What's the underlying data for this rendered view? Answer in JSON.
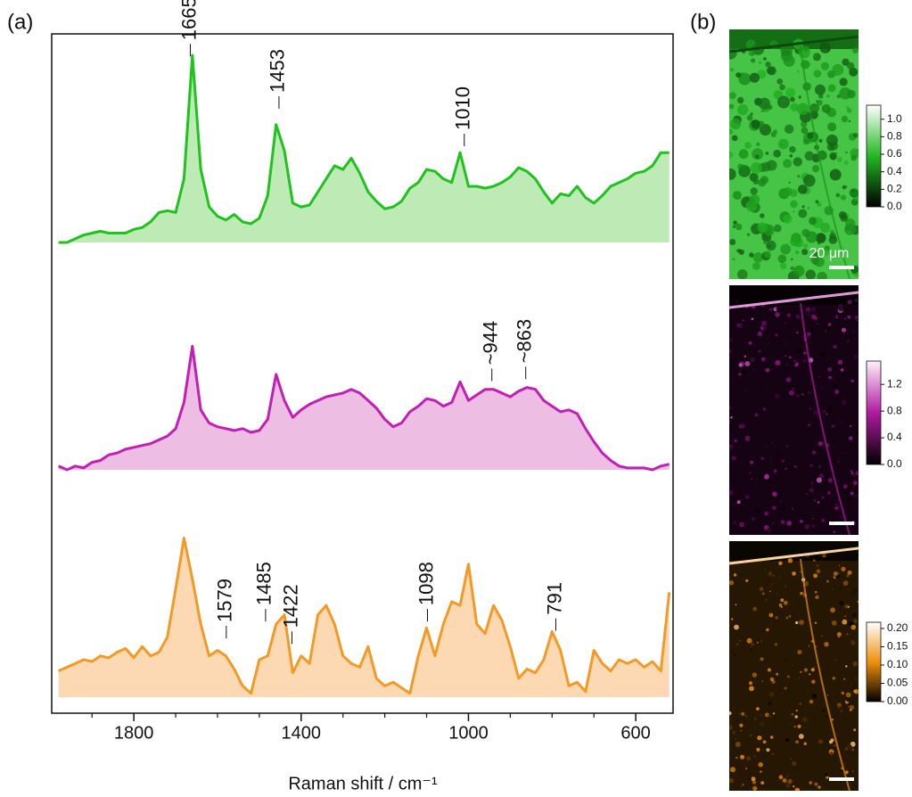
{
  "chart_data": [
    {
      "type": "line",
      "panel_label": "(a)",
      "xlabel": "Raman shift / cm⁻¹",
      "xlim": [
        1990,
        515
      ],
      "xticks": [
        1800,
        1400,
        1000,
        600
      ],
      "xminorticks": [
        1900,
        1700,
        1600,
        1500,
        1300,
        1200,
        1100,
        900,
        800,
        700,
        500
      ],
      "x": [
        1980,
        1960,
        1940,
        1920,
        1900,
        1880,
        1860,
        1840,
        1820,
        1800,
        1780,
        1760,
        1740,
        1720,
        1700,
        1680,
        1660,
        1640,
        1620,
        1600,
        1580,
        1560,
        1540,
        1520,
        1500,
        1480,
        1460,
        1440,
        1420,
        1400,
        1380,
        1360,
        1340,
        1320,
        1300,
        1280,
        1260,
        1240,
        1220,
        1200,
        1180,
        1160,
        1140,
        1120,
        1100,
        1080,
        1060,
        1040,
        1020,
        1000,
        980,
        960,
        940,
        920,
        900,
        880,
        860,
        840,
        820,
        800,
        780,
        760,
        740,
        720,
        700,
        680,
        660,
        640,
        620,
        600,
        580,
        560,
        540,
        520
      ],
      "series": [
        {
          "color": "#1ec31e",
          "fill": "#bdeab5",
          "ylim": [
            0,
            100
          ],
          "values": [
            0,
            0,
            2,
            4,
            5,
            6,
            5,
            5,
            5,
            7,
            8,
            11,
            16,
            17,
            16,
            34,
            100,
            39,
            19,
            14,
            12,
            15,
            11,
            10,
            13,
            25,
            63,
            49,
            21,
            19,
            20,
            27,
            34,
            41,
            39,
            45,
            37,
            27,
            22,
            18,
            19,
            22,
            29,
            32,
            39,
            38,
            34,
            32,
            48,
            30,
            30,
            29,
            30,
            32,
            35,
            40,
            38,
            34,
            27,
            21,
            26,
            25,
            30,
            24,
            21,
            25,
            30,
            32,
            34,
            37,
            38,
            41,
            48,
            48
          ],
          "annotations": [
            {
              "text": "1665",
              "x": 1665,
              "y": 98
            },
            {
              "text": "1453",
              "x": 1453,
              "y": 70
            },
            {
              "text": "1010",
              "x": 1010,
              "y": 50
            }
          ]
        },
        {
          "color": "#c21fb4",
          "fill": "#eebde3",
          "ylim": [
            0,
            100
          ],
          "values": [
            2,
            0,
            2,
            1,
            4,
            5,
            8,
            9,
            11,
            12,
            13,
            14,
            16,
            18,
            22,
            36,
            66,
            32,
            25,
            23,
            22,
            21,
            22,
            20,
            21,
            27,
            51,
            37,
            28,
            32,
            35,
            37,
            39,
            40,
            41,
            43,
            41,
            37,
            33,
            27,
            23,
            25,
            31,
            34,
            38,
            37,
            34,
            36,
            47,
            37,
            40,
            43,
            43,
            41,
            39,
            42,
            44,
            43,
            37,
            34,
            31,
            32,
            30,
            22,
            15,
            9,
            5,
            2,
            1,
            1,
            1,
            0,
            2,
            3
          ],
          "annotations": [
            {
              "text": "~944",
              "x": 944,
              "y": 46
            },
            {
              "text": "~863",
              "x": 863,
              "y": 47
            }
          ]
        },
        {
          "color": "#f39a26",
          "fill": "#fdd9b3",
          "ylim": [
            0,
            100
          ],
          "values": [
            14,
            16,
            18,
            20,
            19,
            22,
            21,
            24,
            26,
            21,
            27,
            22,
            24,
            32,
            58,
            85,
            63,
            39,
            22,
            25,
            22,
            15,
            6,
            2,
            20,
            22,
            39,
            44,
            13,
            22,
            18,
            44,
            49,
            39,
            22,
            18,
            16,
            27,
            10,
            6,
            8,
            5,
            2,
            22,
            37,
            22,
            39,
            51,
            49,
            71,
            39,
            34,
            49,
            41,
            27,
            10,
            15,
            13,
            20,
            35,
            25,
            6,
            8,
            3,
            25,
            18,
            14,
            20,
            18,
            20,
            16,
            19,
            14,
            56
          ],
          "annotations": [
            {
              "text": "1579",
              "x": 1579,
              "y": 30
            },
            {
              "text": "1485",
              "x": 1485,
              "y": 39
            },
            {
              "text": "1422",
              "x": 1422,
              "y": 27
            },
            {
              "text": "1098",
              "x": 1098,
              "y": 39
            },
            {
              "text": "791",
              "x": 791,
              "y": 34
            }
          ]
        }
      ]
    },
    {
      "type": "map",
      "panel_label": "(b)",
      "scale_label": "20 μm",
      "colors": [
        "#000000",
        "#22b922",
        "#ffffff"
      ],
      "clim": [
        0,
        1.16
      ],
      "cticks": [
        {
          "value": 0,
          "label": "0.0"
        },
        0.2,
        0.4,
        0.6,
        0.8,
        {
          "value": 1,
          "label": "1.0"
        }
      ]
    },
    {
      "type": "map",
      "colors": [
        "#000000",
        "#b01aa0",
        "#fff0fb"
      ],
      "clim": [
        0,
        1.55
      ],
      "cticks": [
        {
          "value": 0,
          "label": "0.0"
        },
        0.4,
        0.8,
        1.2
      ]
    },
    {
      "type": "map",
      "colors": [
        "#000000",
        "#f0900c",
        "#ffffff"
      ],
      "clim": [
        0,
        0.217
      ],
      "cticks": [
        {
          "value": 0,
          "label": "0.00"
        },
        0.05,
        {
          "value": 0.1,
          "label": "0.10"
        },
        0.15,
        {
          "value": 0.2,
          "label": "0.20"
        }
      ]
    }
  ]
}
